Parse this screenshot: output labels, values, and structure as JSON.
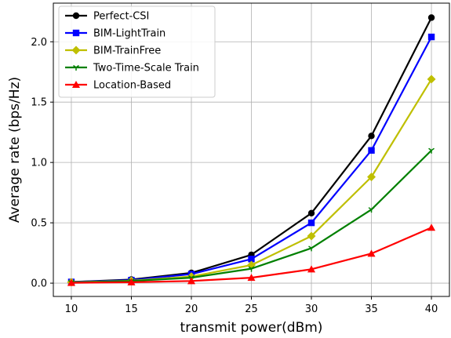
{
  "chart_data": {
    "type": "line",
    "title": "",
    "xlabel": "transmit power(dBm)",
    "ylabel": "Average rate (bps/Hz)",
    "x": [
      10,
      15,
      20,
      25,
      30,
      35,
      40
    ],
    "x_ticks": [
      10,
      15,
      20,
      25,
      30,
      35,
      40
    ],
    "x_tick_labels": [
      "10",
      "15",
      "20",
      "25",
      "30",
      "35",
      "40"
    ],
    "y_ticks": [
      0.0,
      0.5,
      1.0,
      1.5,
      2.0
    ],
    "y_tick_labels": [
      "0.0",
      "0.5",
      "1.0",
      "1.5",
      "2.0"
    ],
    "xlim": [
      8.5,
      41.5
    ],
    "ylim": [
      -0.11,
      2.32
    ],
    "grid": true,
    "legend_position": "top-left",
    "series": [
      {
        "name": "Perfect-CSI",
        "color": "#000000",
        "marker": "circle",
        "values": [
          0.01,
          0.03,
          0.085,
          0.235,
          0.58,
          1.22,
          2.2
        ]
      },
      {
        "name": "BIM-LightTrain",
        "color": "#0000ff",
        "marker": "square",
        "values": [
          0.01,
          0.025,
          0.075,
          0.2,
          0.5,
          1.1,
          2.04
        ]
      },
      {
        "name": "BIM-TrainFree",
        "color": "#bfbf00",
        "marker": "diamond",
        "values": [
          0.008,
          0.02,
          0.055,
          0.15,
          0.39,
          0.88,
          1.69
        ]
      },
      {
        "name": "Two-Time-Scale Train",
        "color": "#008000",
        "marker": "tri_down",
        "values": [
          0.006,
          0.018,
          0.045,
          0.12,
          0.29,
          0.61,
          1.1
        ]
      },
      {
        "name": "Location-Based",
        "color": "#ff0000",
        "marker": "triangle",
        "values": [
          0.003,
          0.008,
          0.018,
          0.045,
          0.115,
          0.245,
          0.46
        ]
      }
    ]
  }
}
